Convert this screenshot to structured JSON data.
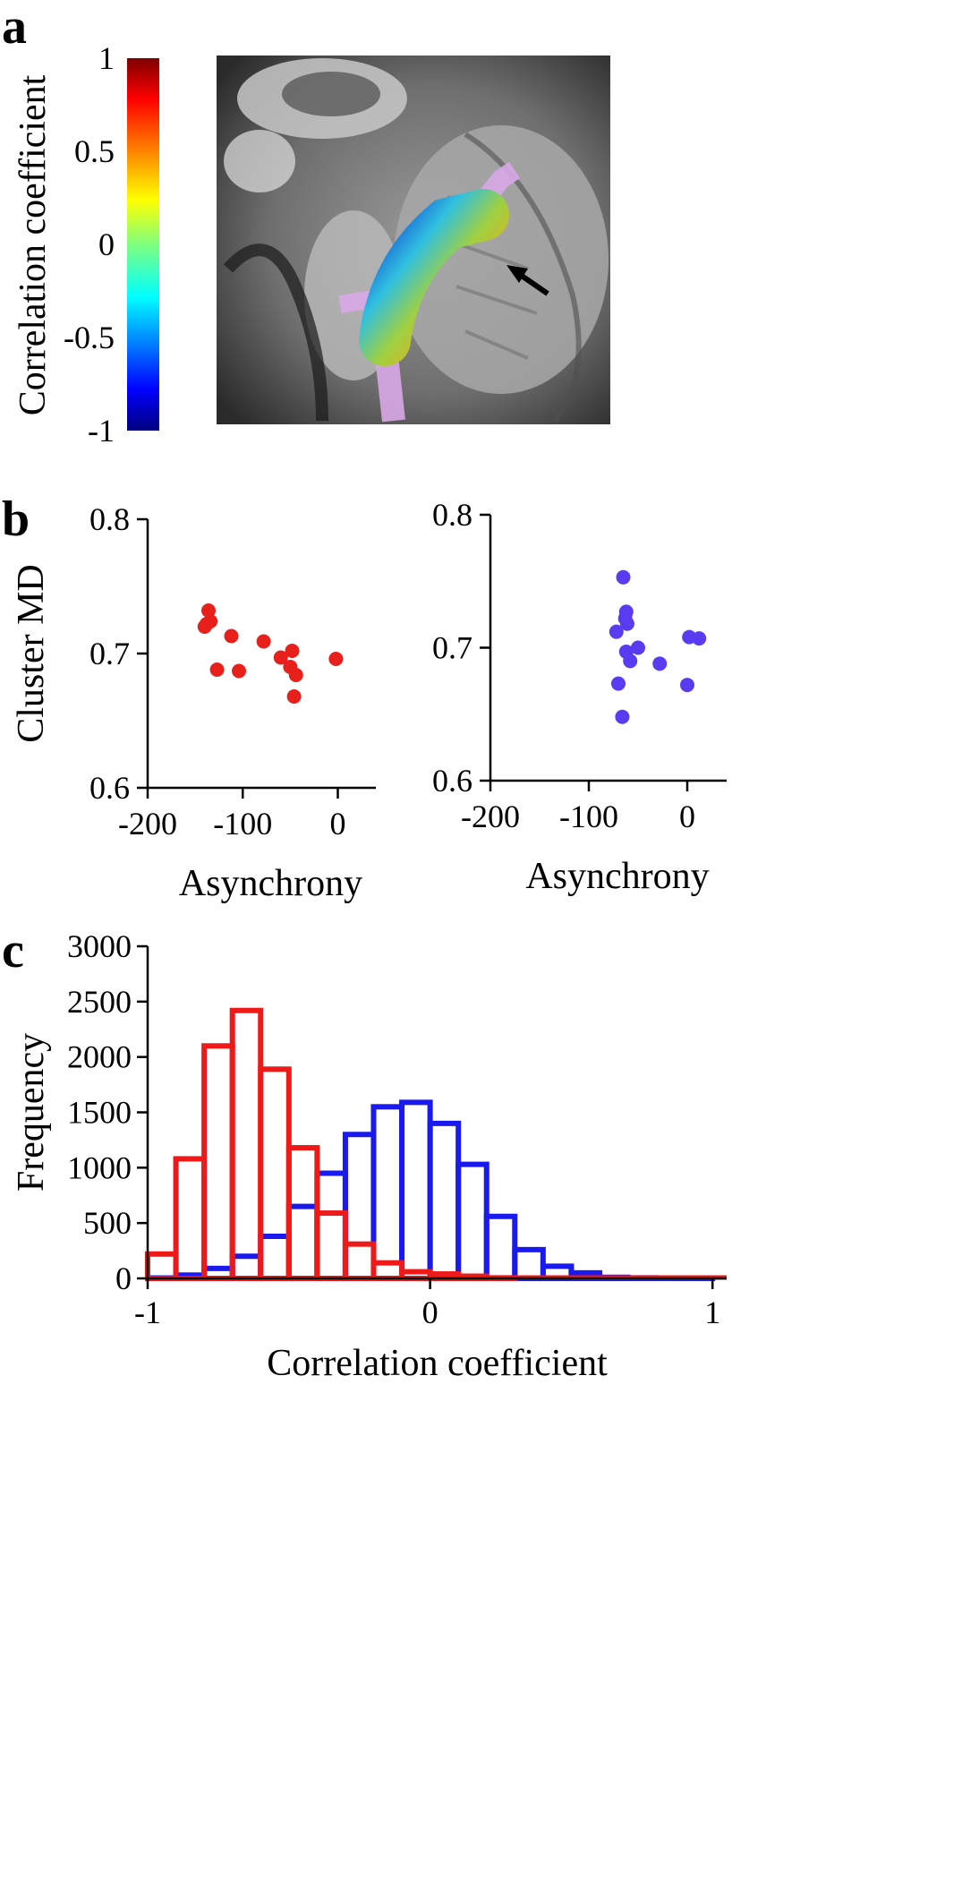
{
  "panels": {
    "a": {
      "letter": "a",
      "colorbar": {
        "label": "Correlation coefficient",
        "ticks": [
          "1",
          "0.5",
          "0",
          "-0.5",
          "-1"
        ],
        "tick_values": [
          1,
          0.5,
          0,
          -0.5,
          -1
        ]
      }
    },
    "b": {
      "letter": "b"
    },
    "c": {
      "letter": "c"
    }
  },
  "chart_data": [
    {
      "type": "scatter",
      "panel": "b-left",
      "ylabel": "Cluster MD",
      "xlabel": "Asynchrony",
      "xlim": [
        -200,
        40
      ],
      "ylim": [
        0.6,
        0.8
      ],
      "xticks": [
        -200,
        -100,
        0
      ],
      "yticks": [
        0.6,
        0.7,
        0.8
      ],
      "xtick_labels": [
        "-200",
        "-100",
        "0"
      ],
      "ytick_labels": [
        "0.6",
        "0.7",
        "0.8"
      ],
      "series": [
        {
          "color": "#e8201c",
          "points": [
            [
              -136,
              0.732
            ],
            [
              -138,
              0.722
            ],
            [
              -134,
              0.724
            ],
            [
              -140,
              0.72
            ],
            [
              -112,
              0.713
            ],
            [
              -127,
              0.688
            ],
            [
              -104,
              0.687
            ],
            [
              -78,
              0.709
            ],
            [
              -60,
              0.697
            ],
            [
              -48,
              0.702
            ],
            [
              -50,
              0.69
            ],
            [
              -44,
              0.684
            ],
            [
              -46,
              0.668
            ],
            [
              -2,
              0.696
            ]
          ]
        }
      ]
    },
    {
      "type": "scatter",
      "panel": "b-right",
      "ylabel": "",
      "xlabel": "Asynchrony",
      "xlim": [
        -200,
        40
      ],
      "ylim": [
        0.6,
        0.8
      ],
      "xticks": [
        -200,
        -100,
        0
      ],
      "yticks": [
        0.6,
        0.7,
        0.8
      ],
      "xtick_labels": [
        "-200",
        "-100",
        "0"
      ],
      "ytick_labels": [
        "0.6",
        "0.7",
        "0.8"
      ],
      "series": [
        {
          "color": "#5a3cf0",
          "points": [
            [
              -65,
              0.753
            ],
            [
              -62,
              0.727
            ],
            [
              -63,
              0.722
            ],
            [
              -61,
              0.718
            ],
            [
              -72,
              0.712
            ],
            [
              -62,
              0.697
            ],
            [
              -58,
              0.69
            ],
            [
              -50,
              0.7
            ],
            [
              -28,
              0.688
            ],
            [
              -70,
              0.673
            ],
            [
              -66,
              0.648
            ],
            [
              2,
              0.708
            ],
            [
              12,
              0.707
            ],
            [
              0,
              0.672
            ]
          ]
        }
      ]
    },
    {
      "type": "bar",
      "panel": "c",
      "title": "",
      "xlabel": "Correlation coefficient",
      "ylabel": "Frequency",
      "xlim": [
        -1,
        1.05
      ],
      "ylim": [
        0,
        3000
      ],
      "xticks": [
        -1,
        0,
        1
      ],
      "yticks": [
        0,
        500,
        1000,
        1500,
        2000,
        2500,
        3000
      ],
      "xtick_labels": [
        "-1",
        "0",
        "1"
      ],
      "ytick_labels": [
        "0",
        "500",
        "1000",
        "1500",
        "2000",
        "2500",
        "3000"
      ],
      "bin_edges": [
        -1,
        -0.9,
        -0.8,
        -0.7,
        -0.6,
        -0.5,
        -0.4,
        -0.3,
        -0.2,
        -0.1,
        0,
        0.1,
        0.2,
        0.3,
        0.4,
        0.5,
        0.6,
        0.7,
        0.8,
        0.9,
        1.0,
        1.05
      ],
      "series": [
        {
          "color": "#1a1aee",
          "values": [
            0,
            30,
            90,
            200,
            380,
            650,
            950,
            1300,
            1550,
            1590,
            1400,
            1030,
            560,
            260,
            110,
            50,
            10,
            5,
            2,
            1,
            0
          ]
        },
        {
          "color": "#ee1a1a",
          "values": [
            220,
            1080,
            2100,
            2420,
            1890,
            1180,
            590,
            310,
            140,
            60,
            40,
            20,
            5,
            0,
            0,
            0,
            0,
            0,
            0,
            0,
            0
          ]
        }
      ]
    }
  ]
}
